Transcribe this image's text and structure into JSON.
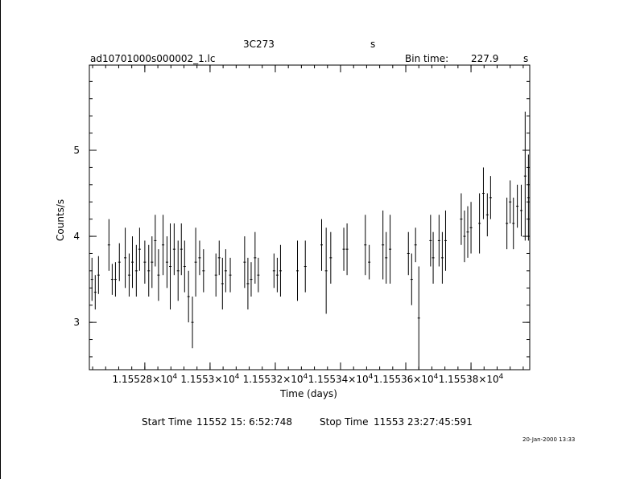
{
  "header": {
    "object": "3C273",
    "unit_label": "s",
    "filename": "ad10701000s000002_1.lc",
    "bin_time_label": "Bin time:",
    "bin_time_value": "227.9",
    "bin_time_unit": "s"
  },
  "footer": {
    "start_label": "Start Time",
    "start_value": "11552 15: 6:52:748",
    "stop_label": "Stop Time",
    "stop_value": "11553 23:27:45:591",
    "date_stamp": "20-Jan-2000 13:33"
  },
  "chart_data": {
    "type": "scatter",
    "title": "3C273",
    "xlabel": "Time (days)",
    "ylabel": "Counts/s",
    "xlim": [
      11552.63,
      11553.98
    ],
    "ylim": [
      2.45,
      5.99
    ],
    "x_tick_labels": [
      {
        "mantissa": "1.15528",
        "exp": "4",
        "x": 11552.8
      },
      {
        "mantissa": "1.1553",
        "exp": "4",
        "x": 11553.0
      },
      {
        "mantissa": "1.15532",
        "exp": "4",
        "x": 11553.2
      },
      {
        "mantissa": "1.15534",
        "exp": "4",
        "x": 11553.4
      },
      {
        "mantissa": "1.15536",
        "exp": "4",
        "x": 11553.6
      },
      {
        "mantissa": "1.15538",
        "exp": "4",
        "x": 11553.8
      }
    ],
    "y_ticks": [
      3,
      4,
      5
    ],
    "grid": false,
    "series": [
      {
        "x": [
          11552.638,
          11552.648,
          11552.658,
          11552.69,
          11552.7,
          11552.71,
          11552.722,
          11552.74,
          11552.752,
          11552.762,
          11552.774,
          11552.784,
          11552.8,
          11552.812,
          11552.822,
          11552.832,
          11552.842,
          11552.856,
          11552.868,
          11552.878,
          11552.89,
          11552.902,
          11552.912,
          11552.922,
          11552.934,
          11552.946,
          11552.956,
          11552.968,
          11552.98,
          11553.018,
          11553.028,
          11553.038,
          11553.048,
          11553.062,
          11553.106,
          11553.116,
          11553.126,
          11553.138,
          11553.148,
          11553.196,
          11553.206,
          11553.216,
          11553.268,
          11553.292,
          11553.342,
          11553.356,
          11553.37,
          11553.41,
          11553.42,
          11553.476,
          11553.488,
          11553.53,
          11553.54,
          11553.552,
          11553.608,
          11553.618,
          11553.63,
          11553.64,
          11553.676,
          11553.684,
          11553.702,
          11553.712,
          11553.722,
          11553.77,
          11553.78,
          11553.79,
          11553.8,
          11553.826,
          11553.838,
          11553.85,
          11553.86,
          11553.91,
          11553.92,
          11553.93,
          11553.942,
          11553.954,
          11553.966,
          11553.976
        ],
        "y": [
          3.5,
          3.35,
          3.55,
          3.9,
          3.5,
          3.5,
          3.7,
          3.75,
          3.55,
          3.7,
          3.6,
          3.85,
          3.7,
          3.6,
          3.7,
          3.95,
          3.55,
          3.9,
          3.7,
          3.65,
          3.85,
          3.6,
          3.85,
          3.65,
          3.3,
          3.0,
          3.7,
          3.75,
          3.6,
          3.55,
          3.75,
          3.45,
          3.6,
          3.55,
          3.7,
          3.45,
          3.5,
          3.75,
          3.55,
          3.6,
          3.55,
          3.6,
          3.6,
          3.65,
          3.9,
          3.6,
          3.75,
          3.85,
          3.85,
          3.9,
          3.7,
          3.9,
          3.75,
          3.85,
          3.8,
          3.5,
          3.9,
          3.05,
          3.95,
          3.75,
          3.95,
          3.75,
          3.95,
          4.2,
          4.0,
          4.05,
          4.1,
          4.15,
          4.5,
          4.25,
          4.45,
          4.15,
          4.4,
          4.15,
          4.35,
          4.3,
          4.7,
          4.45
        ],
        "err": [
          0.25,
          0.2,
          0.22,
          0.3,
          0.18,
          0.2,
          0.22,
          0.35,
          0.25,
          0.3,
          0.3,
          0.25,
          0.25,
          0.3,
          0.3,
          0.3,
          0.3,
          0.35,
          0.3,
          0.5,
          0.3,
          0.35,
          0.3,
          0.3,
          0.3,
          0.3,
          0.4,
          0.2,
          0.25,
          0.25,
          0.2,
          0.3,
          0.25,
          0.2,
          0.3,
          0.3,
          0.2,
          0.3,
          0.2,
          0.2,
          0.2,
          0.3,
          0.35,
          0.3,
          0.3,
          0.5,
          0.3,
          0.25,
          0.3,
          0.35,
          0.2,
          0.4,
          0.3,
          0.4,
          0.25,
          0.3,
          0.2,
          0.6,
          0.3,
          0.3,
          0.3,
          0.3,
          0.35,
          0.3,
          0.3,
          0.3,
          0.3,
          0.35,
          0.3,
          0.25,
          0.25,
          0.3,
          0.25,
          0.3,
          0.25,
          0.3,
          0.75,
          0.5
        ]
      }
    ]
  }
}
